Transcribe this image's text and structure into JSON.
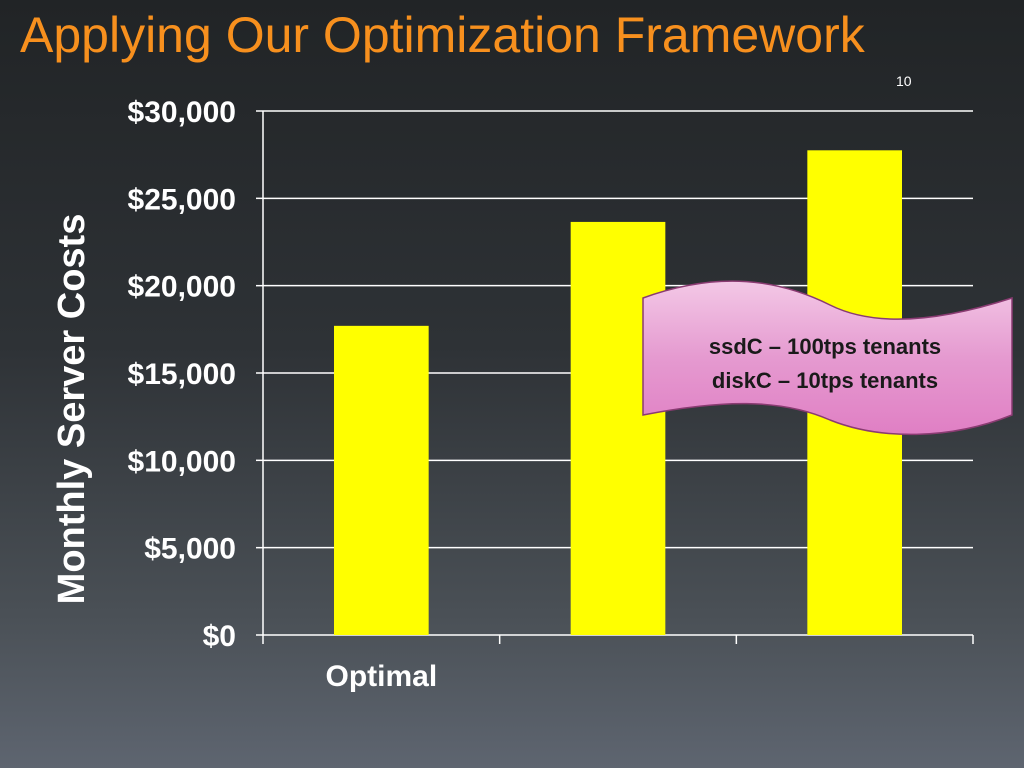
{
  "slide": {
    "title": "Applying Our Optimization Framework",
    "page_number": "10"
  },
  "chart_data": {
    "type": "bar",
    "categories": [
      "Optimal",
      "",
      ""
    ],
    "values": [
      17700,
      23650,
      27750
    ],
    "ylabel": "Monthly Server Costs",
    "xlabel": "",
    "ylim": [
      0,
      30000
    ],
    "yticks": [
      0,
      5000,
      10000,
      15000,
      20000,
      25000,
      30000
    ],
    "ytick_labels": [
      "$0",
      "$5,000",
      "$10,000",
      "$15,000",
      "$20,000",
      "$25,000",
      "$30,000"
    ],
    "grid": true,
    "bar_color": "#ffff00",
    "gridline_color": "#ffffff"
  },
  "callout": {
    "lines": [
      "ssdC – 100tps tenants",
      "diskC – 10tps tenants"
    ],
    "fill_color": "#e07fc4"
  },
  "colors": {
    "title": "#f7901e",
    "background": "#2a2d31"
  }
}
